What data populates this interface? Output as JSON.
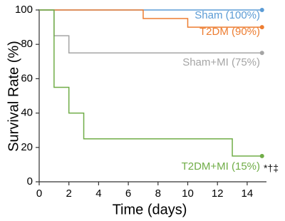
{
  "chart_data": {
    "type": "step",
    "xlabel": "Time (days)",
    "ylabel": "Survival Rate (%)",
    "xlim": [
      0,
      15.3
    ],
    "ylim": [
      0,
      100
    ],
    "xticks": [
      0,
      2,
      4,
      6,
      8,
      10,
      12,
      14
    ],
    "yticks": [
      0,
      20,
      40,
      60,
      80,
      100
    ],
    "series": [
      {
        "name": "Sham (100%)",
        "color": "#5b9bd5",
        "x": [
          0,
          15
        ],
        "values": [
          100,
          100
        ]
      },
      {
        "name": "T2DM (90%)",
        "color": "#ed7d31",
        "x": [
          0,
          7,
          10,
          15
        ],
        "values": [
          100,
          95,
          90,
          90
        ]
      },
      {
        "name": "Sham+MI (75%)",
        "color": "#a5a5a5",
        "x": [
          0,
          1,
          2,
          15
        ],
        "values": [
          100,
          85,
          75,
          75
        ]
      },
      {
        "name": "T2DM+MI (15%)",
        "color": "#70ad47",
        "x": [
          0,
          1,
          2,
          3,
          13,
          15
        ],
        "values": [
          100,
          55,
          40,
          25,
          15,
          15
        ]
      }
    ],
    "annotation": "*†‡"
  }
}
